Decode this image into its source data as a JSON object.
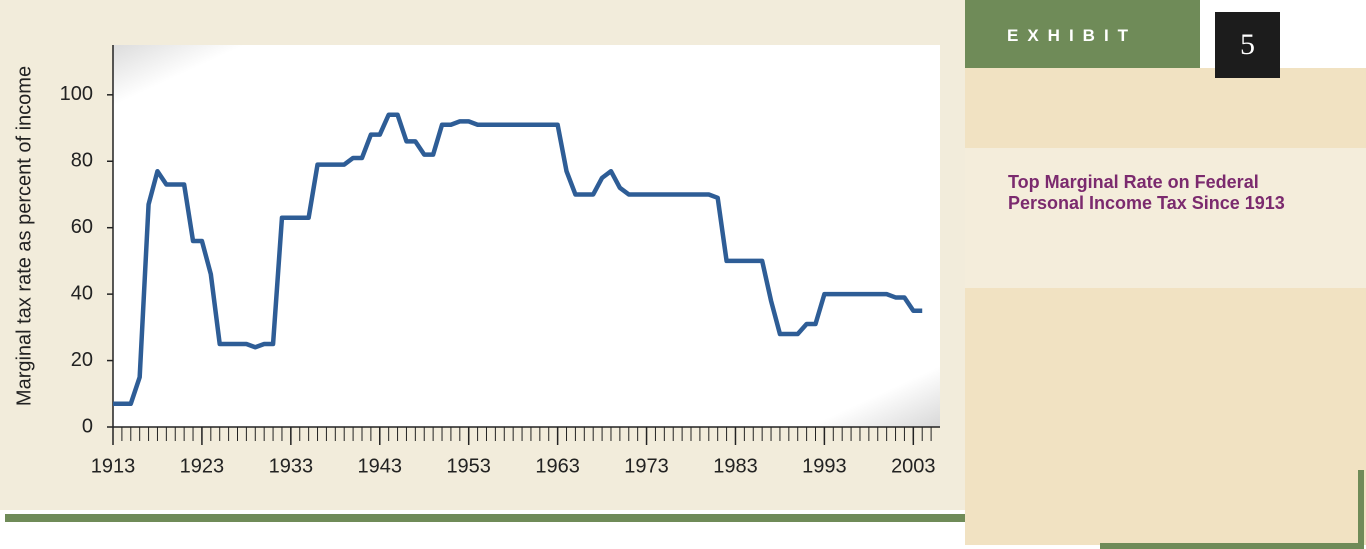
{
  "exhibit": {
    "label": "EXHIBIT",
    "number": "5"
  },
  "chart_data": {
    "type": "line",
    "title": "Top Marginal Rate on Federal Personal Income Tax Since 1913",
    "ylabel": "Marginal tax rate as percent of income",
    "x": [
      1913,
      1914,
      1915,
      1916,
      1917,
      1918,
      1919,
      1920,
      1921,
      1922,
      1923,
      1924,
      1925,
      1926,
      1927,
      1928,
      1929,
      1930,
      1931,
      1932,
      1933,
      1934,
      1935,
      1936,
      1937,
      1938,
      1939,
      1940,
      1941,
      1942,
      1943,
      1944,
      1945,
      1946,
      1947,
      1948,
      1949,
      1950,
      1951,
      1952,
      1953,
      1954,
      1955,
      1956,
      1957,
      1958,
      1959,
      1960,
      1961,
      1962,
      1963,
      1964,
      1965,
      1966,
      1967,
      1968,
      1969,
      1970,
      1971,
      1972,
      1973,
      1974,
      1975,
      1976,
      1977,
      1978,
      1979,
      1980,
      1981,
      1982,
      1983,
      1984,
      1985,
      1986,
      1987,
      1988,
      1989,
      1990,
      1991,
      1992,
      1993,
      1994,
      1995,
      1996,
      1997,
      1998,
      1999,
      2000,
      2001,
      2002,
      2003,
      2004
    ],
    "values": [
      7,
      7,
      7,
      15,
      67,
      77,
      73,
      73,
      73,
      56,
      56,
      46,
      25,
      25,
      25,
      25,
      24,
      25,
      25,
      63,
      63,
      63,
      63,
      79,
      79,
      79,
      79,
      81,
      81,
      88,
      88,
      94,
      94,
      86,
      86,
      82,
      82,
      91,
      91,
      92,
      92,
      91,
      91,
      91,
      91,
      91,
      91,
      91,
      91,
      91,
      91,
      77,
      70,
      70,
      70,
      75,
      77,
      72,
      70,
      70,
      70,
      70,
      70,
      70,
      70,
      70,
      70,
      70,
      69,
      50,
      50,
      50,
      50,
      50,
      38,
      28,
      28,
      28,
      31,
      31,
      40,
      40,
      40,
      40,
      40,
      40,
      40,
      40,
      39,
      39,
      35,
      35
    ],
    "color": "#2e5d96",
    "xlim": [
      1913,
      2006
    ],
    "xticks": [
      1913,
      1923,
      1933,
      1943,
      1953,
      1963,
      1973,
      1983,
      1993,
      2003
    ],
    "xminorticks": [
      1913,
      1914,
      1915,
      1916,
      1917,
      1918,
      1919,
      1920,
      1921,
      1922,
      1923,
      1924,
      1925,
      1926,
      1927,
      1928,
      1929,
      1930,
      1931,
      1932,
      1933,
      1934,
      1935,
      1936,
      1937,
      1938,
      1939,
      1940,
      1941,
      1942,
      1943,
      1944,
      1945,
      1946,
      1947,
      1948,
      1949,
      1950,
      1951,
      1952,
      1953,
      1954,
      1955,
      1956,
      1957,
      1958,
      1959,
      1960,
      1961,
      1962,
      1963,
      1964,
      1965,
      1966,
      1967,
      1968,
      1969,
      1970,
      1971,
      1972,
      1973,
      1974,
      1975,
      1976,
      1977,
      1978,
      1979,
      1980,
      1981,
      1982,
      1983,
      1984,
      1985,
      1986,
      1987,
      1988,
      1989,
      1990,
      1991,
      1992,
      1993,
      1994,
      1995,
      1996,
      1997,
      1998,
      1999,
      2000,
      2001,
      2002,
      2003,
      2004,
      2005
    ],
    "ylim": [
      0,
      115
    ],
    "yticks": [
      0,
      20,
      40,
      60,
      80,
      100
    ]
  }
}
